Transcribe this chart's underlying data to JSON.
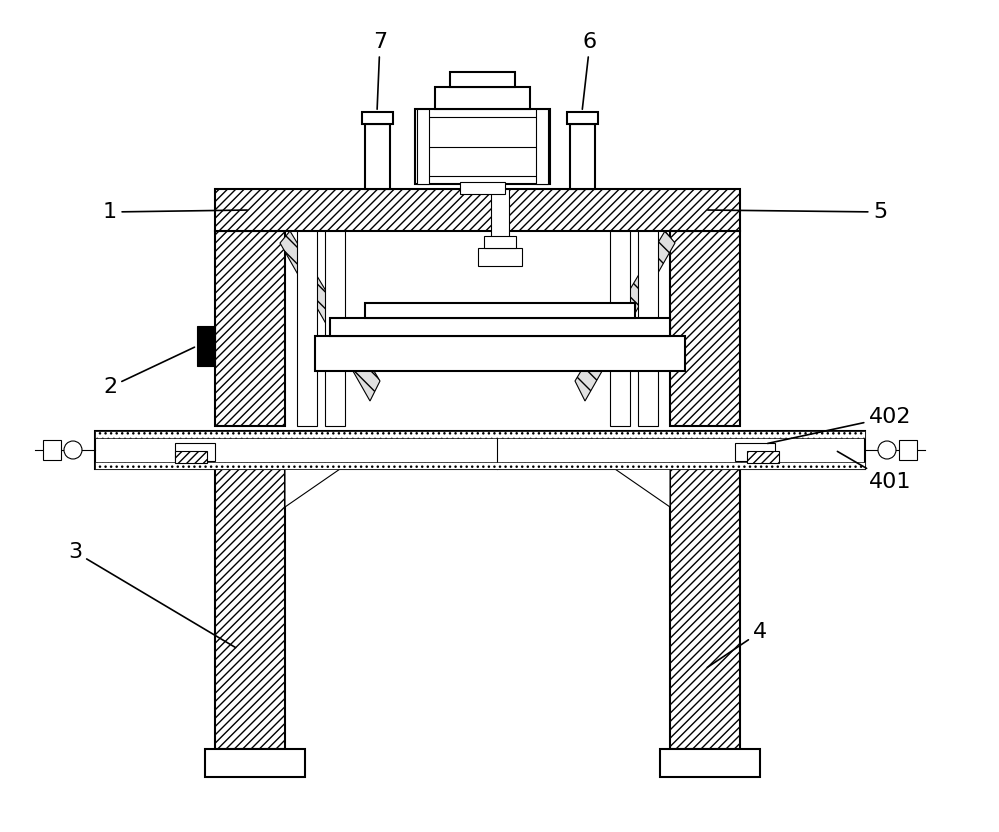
{
  "bg_color": "#ffffff",
  "line_color": "#000000",
  "label_fontsize": 16,
  "figsize": [
    9.99,
    8.32
  ],
  "dpi": 100
}
